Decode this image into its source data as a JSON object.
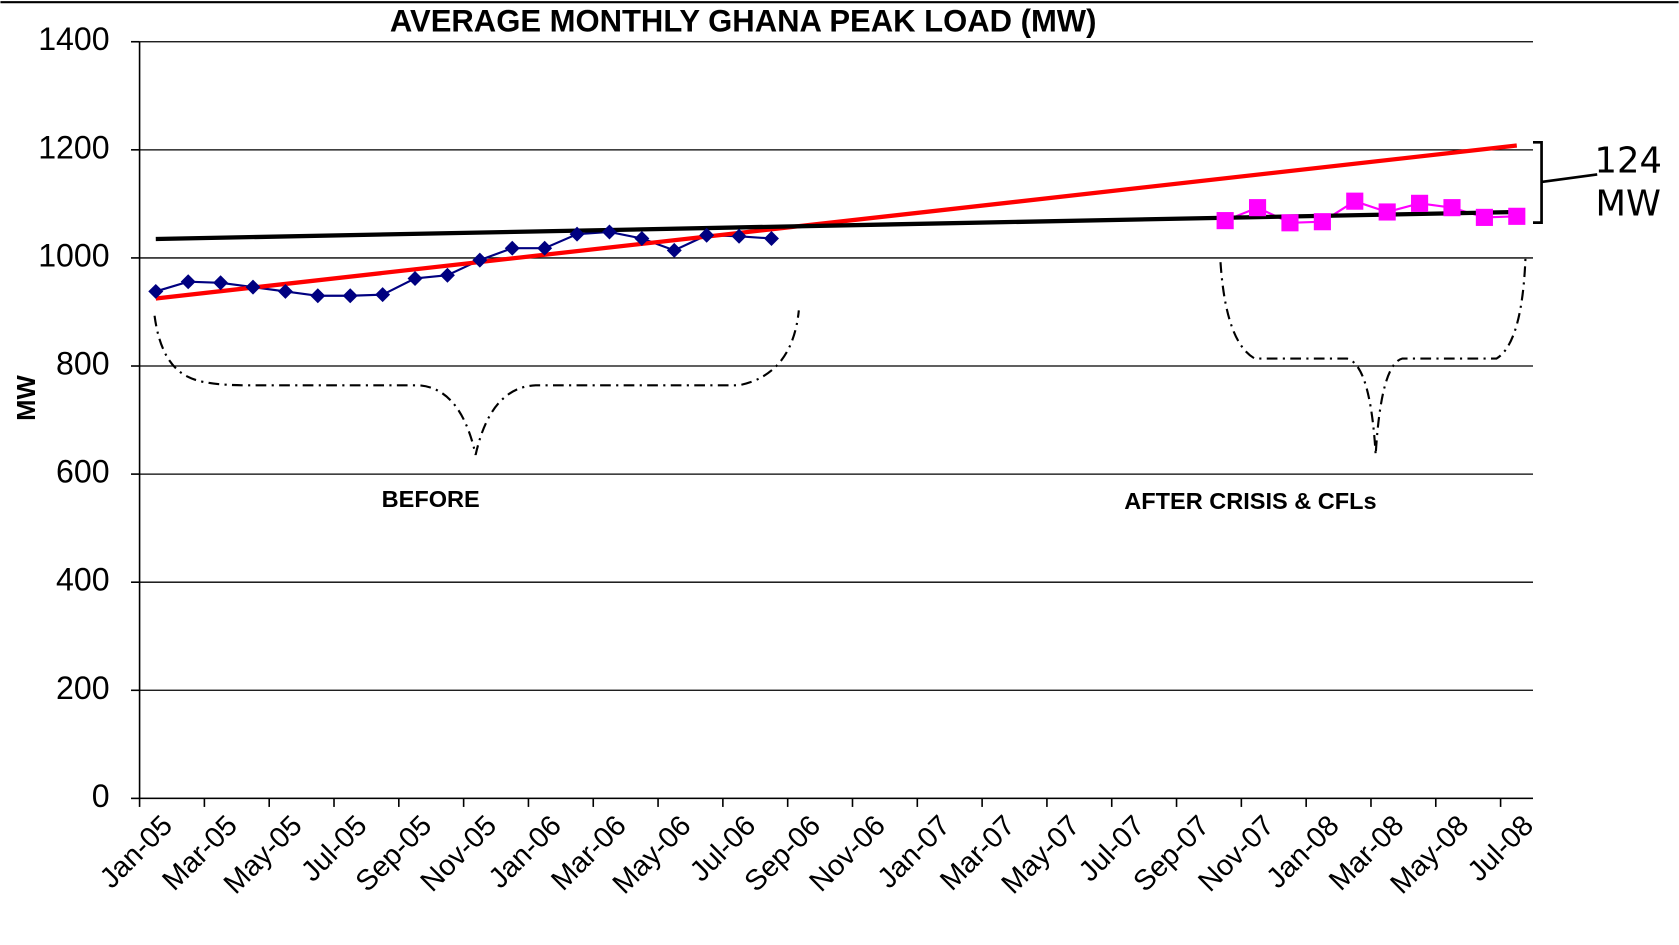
{
  "chart_data": {
    "type": "line",
    "title": "AVERAGE MONTHLY GHANA PEAK LOAD (MW)",
    "y_label": "MW",
    "categories": [
      "Jan-05",
      null,
      "Mar-05",
      null,
      "May-05",
      null,
      "Jul-05",
      null,
      "Sep-05",
      null,
      "Nov-05",
      null,
      "Jan-06",
      null,
      "Mar-06",
      null,
      "May-06",
      null,
      "Jul-06",
      null,
      "Sep-06",
      null,
      "Nov-06",
      null,
      "Jan-07",
      null,
      "Mar-07",
      null,
      "May-07",
      null,
      "Jul-07",
      null,
      "Sep-07",
      null,
      "Nov-07",
      null,
      "Jan-08",
      null,
      "Mar-08",
      null,
      "May-08",
      null,
      "Jul-08"
    ],
    "series": [
      {
        "color": "#000080",
        "marker": "diamond",
        "values": [
          938,
          956,
          954,
          946,
          938,
          930,
          930,
          932,
          962,
          968,
          996,
          1018,
          1018,
          1044,
          1048,
          1036,
          1014,
          1042,
          1040,
          1036,
          null,
          null,
          null,
          null,
          null,
          null,
          null,
          null,
          null,
          null,
          null,
          null,
          null,
          null,
          null,
          null,
          null,
          null,
          null,
          null,
          null,
          null,
          null
        ]
      },
      {
        "color": "#ff00ff",
        "marker": "square",
        "values": [
          null,
          null,
          null,
          null,
          null,
          null,
          null,
          null,
          null,
          null,
          null,
          null,
          null,
          null,
          null,
          null,
          null,
          null,
          null,
          null,
          null,
          null,
          null,
          null,
          null,
          null,
          null,
          null,
          null,
          null,
          null,
          null,
          null,
          1069,
          1093,
          1065,
          1067,
          1105,
          1085,
          1101,
          1093,
          1075,
          1077
        ]
      }
    ],
    "trendlines": [
      {
        "color": "#ff0000",
        "start": 925,
        "end": 1208
      },
      {
        "color": "#000000",
        "start": 1035,
        "end": 1085
      }
    ],
    "ylim": [
      0,
      1400
    ],
    "yticks": [
      0,
      200,
      400,
      600,
      800,
      1000,
      1200,
      1400
    ],
    "grid": true,
    "annotations": [
      "BEFORE",
      "AFTER CRISIS & CFLs",
      "124",
      "MW"
    ]
  }
}
